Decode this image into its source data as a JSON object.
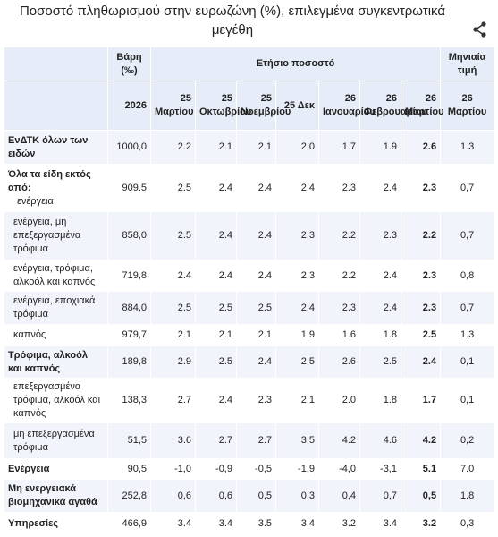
{
  "title": "Ποσοστό πληθωρισμού στην ευρωζώνη (%), επιλεγμένα συγκεντρωτικά μεγέθη",
  "table": {
    "header": {
      "weights": "Βάρη (‰)",
      "annual": "Ετήσιο ποσοστό",
      "monthly": "Μηνιαία τιμή",
      "columns": [
        "2026",
        "25 Μαρτίου",
        "25 Οκτωβρίου",
        "25 Νοεμβρίου",
        "25 Δεκ",
        "26 Ιανουαρίου",
        "26 Φεβρουαρίου",
        "26 Μαρτίου",
        "26 Μαρτίου"
      ]
    },
    "rows": [
      {
        "label": "ΕνΔΤΚ όλων των ειδών",
        "values": [
          "1000,0",
          "2.2",
          "2.1",
          "2.1",
          "2.0",
          "1.7",
          "1.9",
          "2.6",
          "1.3"
        ]
      },
      {
        "label": "Όλα τα είδη εκτός από:",
        "sublabel": "ενέργεια",
        "values": [
          "909.5",
          "2.5",
          "2.4",
          "2.4",
          "2.4",
          "2.3",
          "2.4",
          "2.3",
          "0,7"
        ]
      },
      {
        "label": "ενέργεια, μη επεξεργασμένα τρόφιμα",
        "values": [
          "858,0",
          "2.5",
          "2.4",
          "2.4",
          "2.3",
          "2.2",
          "2.3",
          "2.2",
          "0,7"
        ]
      },
      {
        "label": "ενέργεια, τρόφιμα, αλκοόλ και καπνός",
        "values": [
          "719,8",
          "2.4",
          "2.4",
          "2.4",
          "2.3",
          "2.2",
          "2.4",
          "2.3",
          "0,8"
        ]
      },
      {
        "label": "ενέργεια, εποχιακά τρόφιμα",
        "values": [
          "884,0",
          "2.5",
          "2.5",
          "2.5",
          "2.4",
          "2.3",
          "2.4",
          "2.3",
          "0,7"
        ]
      },
      {
        "label": "καπνός",
        "values": [
          "979,7",
          "2.1",
          "2.1",
          "2.1",
          "1.9",
          "1.6",
          "1.8",
          "2.5",
          "1.3"
        ]
      },
      {
        "label": "Τρόφιμα, αλκοόλ και καπνός",
        "values": [
          "189,8",
          "2.9",
          "2.5",
          "2.4",
          "2.5",
          "2.6",
          "2.5",
          "2.4",
          "0,1"
        ]
      },
      {
        "label": "επεξεργασμένα τρόφιμα, αλκοόλ και καπνός",
        "values": [
          "138,3",
          "2.7",
          "2.4",
          "2.3",
          "2.1",
          "2.0",
          "1.8",
          "1.7",
          "0,1"
        ]
      },
      {
        "label": "μη επεξεργασμένα τρόφιμα",
        "values": [
          "51,5",
          "3.6",
          "2.7",
          "2.7",
          "3.5",
          "4.2",
          "4.6",
          "4.2",
          "0,2"
        ]
      },
      {
        "label": "Ενέργεια",
        "values": [
          "90,5",
          "-1,0",
          "-0,9",
          "-0,5",
          "-1,9",
          "-4,0",
          "-3,1",
          "5.1",
          "7.0"
        ]
      },
      {
        "label": "Μη ενεργειακά βιομηχανικά αγαθά",
        "values": [
          "252,8",
          "0,6",
          "0,6",
          "0,5",
          "0,3",
          "0,4",
          "0,7",
          "0,5",
          "1.8"
        ]
      },
      {
        "label": "Υπηρεσίες",
        "values": [
          "466,9",
          "3.4",
          "3.4",
          "3.5",
          "3.4",
          "3.2",
          "3.4",
          "3.2",
          "0,3"
        ]
      }
    ]
  }
}
